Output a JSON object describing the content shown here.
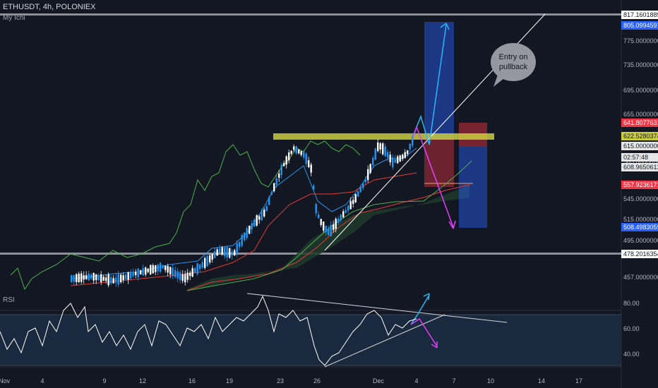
{
  "header": {
    "symbol_line": "ETHUSDT, 4h, POLONIEX",
    "indicator_name": "My Ichi",
    "rsi_label": "RSI"
  },
  "annotation": {
    "line1": "Entry on",
    "line2": "pullback"
  },
  "price_axis": {
    "ticks": [
      "775.00000000",
      "735.00000000",
      "695.00000000",
      "655.00000000",
      "615.00000000",
      "585.00000000",
      "545.00000000",
      "515.00000000",
      "495.00000000",
      "457.00000000"
    ],
    "badges": [
      {
        "text": "817.16018897",
        "bg": "#ffffff",
        "fg": "#131722"
      },
      {
        "text": "805.09945919",
        "bg": "#2962ff",
        "fg": "#ffffff"
      },
      {
        "text": "641.80776313",
        "bg": "#f23645",
        "fg": "#ffffff"
      },
      {
        "text": "622.52803747",
        "bg": "#c9cc3f",
        "fg": "#131722"
      },
      {
        "text": "615.00000000",
        "bg": "#e6e6e6",
        "fg": "#131722"
      },
      {
        "text": "02:57:48",
        "bg": "#e6e6e6",
        "fg": "#131722"
      },
      {
        "text": "608.96506134",
        "bg": "#e6e6e6",
        "fg": "#131722"
      },
      {
        "text": "557.92361713",
        "bg": "#f23645",
        "fg": "#ffffff"
      },
      {
        "text": "508.49830592",
        "bg": "#2962ff",
        "fg": "#ffffff"
      },
      {
        "text": "478.20163544",
        "bg": "#ffffff",
        "fg": "#131722"
      }
    ]
  },
  "rsi_axis": {
    "ticks": [
      "80.00",
      "60.00",
      "40.00"
    ]
  },
  "time_axis": {
    "ticks": [
      "Nov",
      "4",
      "9",
      "12",
      "16",
      "19",
      "23",
      "26",
      "Dec",
      "4",
      "7",
      "10",
      "14",
      "17"
    ]
  },
  "colors": {
    "background": "#131722",
    "candle_up": "#2196f3",
    "candle_down": "#ffffff",
    "resistance_zone": "#c9cc3f",
    "long_target": "#2962ff",
    "stop_zone": "#f23645",
    "cloud_bull": "#1e3a2a",
    "arrow_up": "#29b6f6",
    "arrow_down": "#e040fb",
    "rsi_band": "#1c2b40"
  },
  "chart_data": {
    "type": "candlestick",
    "y_range": [
      440,
      830
    ],
    "levels": [
      817.16,
      478.2,
      622.53,
      641.81,
      557.92,
      805.1,
      508.5
    ],
    "rsi_range": [
      25,
      90
    ]
  }
}
